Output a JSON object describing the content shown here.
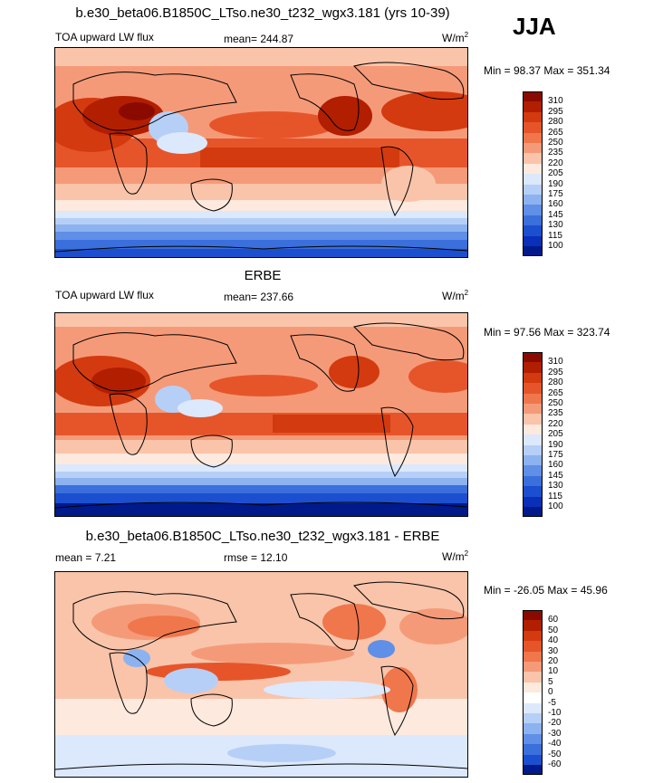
{
  "figure": {
    "season": "JJA"
  },
  "panels": [
    {
      "id": "model",
      "title": "b.e30_beta06.B1850C_LTso.ne30_t232_wgx3.181 (yrs 10-39)",
      "left_label": "TOA upward LW flux",
      "center_label": "mean= 244.87",
      "unit": "W/m",
      "unit_sup": "2",
      "minmax": "Min =  98.37 Max = 351.34",
      "levels": [
        "310",
        "295",
        "280",
        "265",
        "250",
        "235",
        "220",
        "205",
        "190",
        "175",
        "160",
        "145",
        "130",
        "115",
        "100"
      ],
      "colors": [
        "#8b0a00",
        "#b21e00",
        "#d43a0f",
        "#e6552a",
        "#f0764c",
        "#f59a78",
        "#f9c4aa",
        "#fde9de",
        "#dce8fb",
        "#b6cff7",
        "#8cb2f0",
        "#5f8fe6",
        "#3a6fdc",
        "#1c4fcf",
        "#0a2fb8",
        "#001a8c"
      ]
    },
    {
      "id": "obs",
      "title": "ERBE",
      "left_label": "TOA upward LW flux",
      "center_label": "mean= 237.66",
      "unit": "W/m",
      "unit_sup": "2",
      "minmax": "Min =  97.56 Max = 323.74",
      "levels": [
        "310",
        "295",
        "280",
        "265",
        "250",
        "235",
        "220",
        "205",
        "190",
        "175",
        "160",
        "145",
        "130",
        "115",
        "100"
      ],
      "colors": [
        "#8b0a00",
        "#b21e00",
        "#d43a0f",
        "#e6552a",
        "#f0764c",
        "#f59a78",
        "#f9c4aa",
        "#fde9de",
        "#dce8fb",
        "#b6cff7",
        "#8cb2f0",
        "#5f8fe6",
        "#3a6fdc",
        "#1c4fcf",
        "#0a2fb8",
        "#001a8c"
      ]
    },
    {
      "id": "diff",
      "title": "b.e30_beta06.B1850C_LTso.ne30_t232_wgx3.181 - ERBE",
      "left_label": "mean =   7.21",
      "center_label": "rmse =  12.10",
      "unit": "W/m",
      "unit_sup": "2",
      "minmax": "Min = -26.05 Max =  45.96",
      "levels": [
        "60",
        "50",
        "40",
        "30",
        "20",
        "10",
        "5",
        "0",
        "-5",
        "-10",
        "-20",
        "-30",
        "-40",
        "-50",
        "-60"
      ],
      "colors": [
        "#8b0a00",
        "#b21e00",
        "#d43a0f",
        "#e6552a",
        "#f0764c",
        "#f59a78",
        "#f9c4aa",
        "#fde9de",
        "#ffffff",
        "#dce8fb",
        "#b6cff7",
        "#8cb2f0",
        "#5f8fe6",
        "#3a6fdc",
        "#1c4fcf",
        "#001a8c"
      ]
    }
  ]
}
